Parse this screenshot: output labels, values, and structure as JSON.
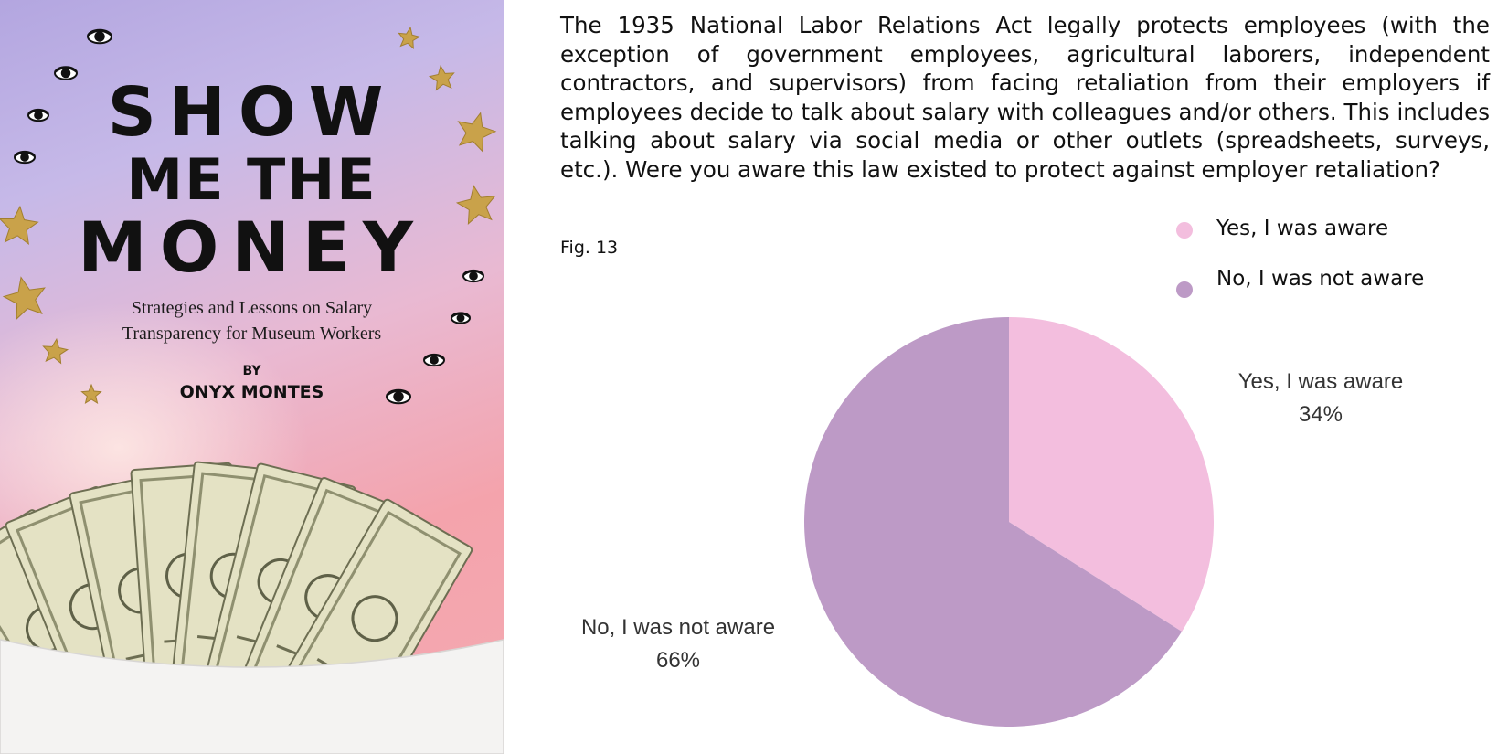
{
  "cover": {
    "title_line1": "SHOW",
    "title_line2": "ME THE",
    "title_line3": "MONEY",
    "subtitle_line1": "Strategies and Lessons on Salary",
    "subtitle_line2": "Transparency for Museum Workers",
    "by": "BY",
    "author": "ONYX MONTES"
  },
  "question": "The 1935 National Labor Relations Act legally protects employees (with the exception of government employees, agricultural laborers, independent contractors, and supervisors) from facing retaliation from their employers if employees decide to talk about salary with colleagues and/or others. This includes talking about salary via social media or other outlets (spreadsheets, surveys, etc.). Were you aware this law existed to protect against employer retaliation?",
  "figure_label": "Fig. 13",
  "colors": {
    "yes": "#f3bede",
    "no": "#bd9ac6",
    "cover_gold": "#c9a24a"
  },
  "chart_data": {
    "type": "pie",
    "legend": "top-right",
    "slices": [
      {
        "label": "Yes, I was aware",
        "value": 34,
        "display": "34%",
        "color": "#f3bede"
      },
      {
        "label": "No, I was not aware",
        "value": 66,
        "display": "66%",
        "color": "#bd9ac6"
      }
    ]
  }
}
